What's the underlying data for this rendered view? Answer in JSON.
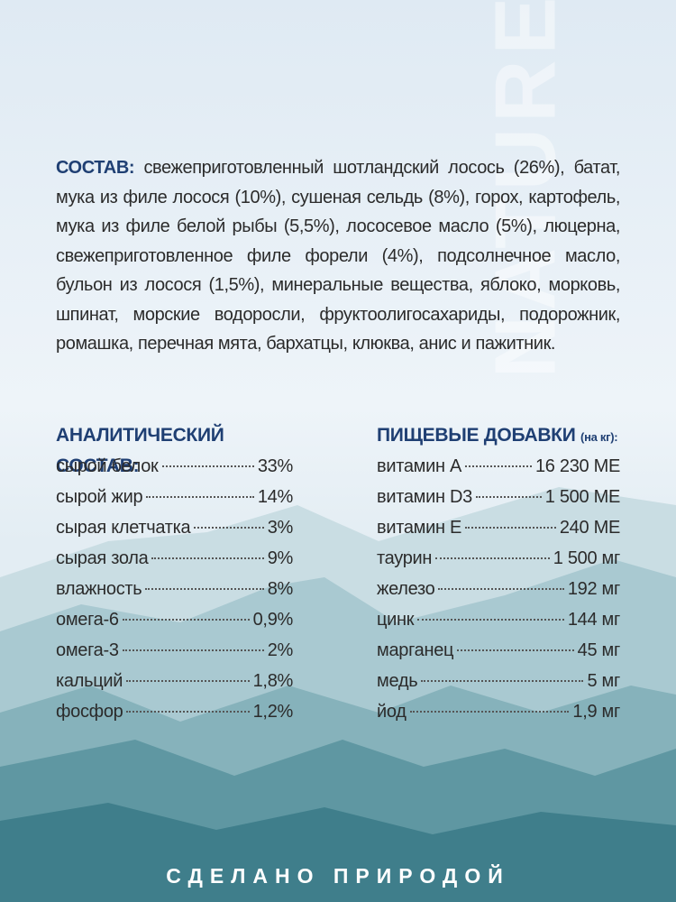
{
  "watermark": "NATURE",
  "composition": {
    "label": "СОСТАВ:",
    "text": "свежеприготовленный шотландский лосось (26%), батат, мука из филе лосося (10%), сушеная сельдь (8%), горох, картофель, мука из филе белой рыбы (5,5%), лососевое масло (5%), люцерна, свежеприготовленное филе форели (4%), подсолнечное масло, бульон из лосося (1,5%), минеральные вещества, яблоко, морковь, шпинат, морские водоросли, фруктоолигосахариды, подорожник, ромашка, перечная мята, бархатцы, клюква, анис и пажитник."
  },
  "analysis": {
    "title": "АНАЛИТИЧЕСКИЙ СОСТАВ:",
    "rows": [
      [
        "сырой белок",
        "33%"
      ],
      [
        "сырой жир",
        "14%"
      ],
      [
        "сырая клетчатка",
        "3%"
      ],
      [
        "сырая зола",
        "9%"
      ],
      [
        "влажность",
        "8%"
      ],
      [
        "омега-6",
        "0,9%"
      ],
      [
        "омега-3",
        "2%"
      ],
      [
        "кальций",
        "1,8%"
      ],
      [
        "фосфор",
        "1,2%"
      ]
    ]
  },
  "additives": {
    "title": "ПИЩЕВЫЕ ДОБАВКИ",
    "note": "(на кг):",
    "rows": [
      [
        "витамин А",
        "16 230 МЕ"
      ],
      [
        "витамин D3",
        "1 500 МЕ"
      ],
      [
        "витамин Е",
        "240 МЕ"
      ],
      [
        "таурин",
        "1 500 мг"
      ],
      [
        "железо",
        "192 мг"
      ],
      [
        "цинк",
        "144 мг"
      ],
      [
        "марганец",
        "45 мг"
      ],
      [
        "медь",
        "5 мг"
      ],
      [
        "йод",
        "1,9 мг"
      ]
    ]
  },
  "footer": "СДЕЛАНО ПРИРОДОЙ"
}
